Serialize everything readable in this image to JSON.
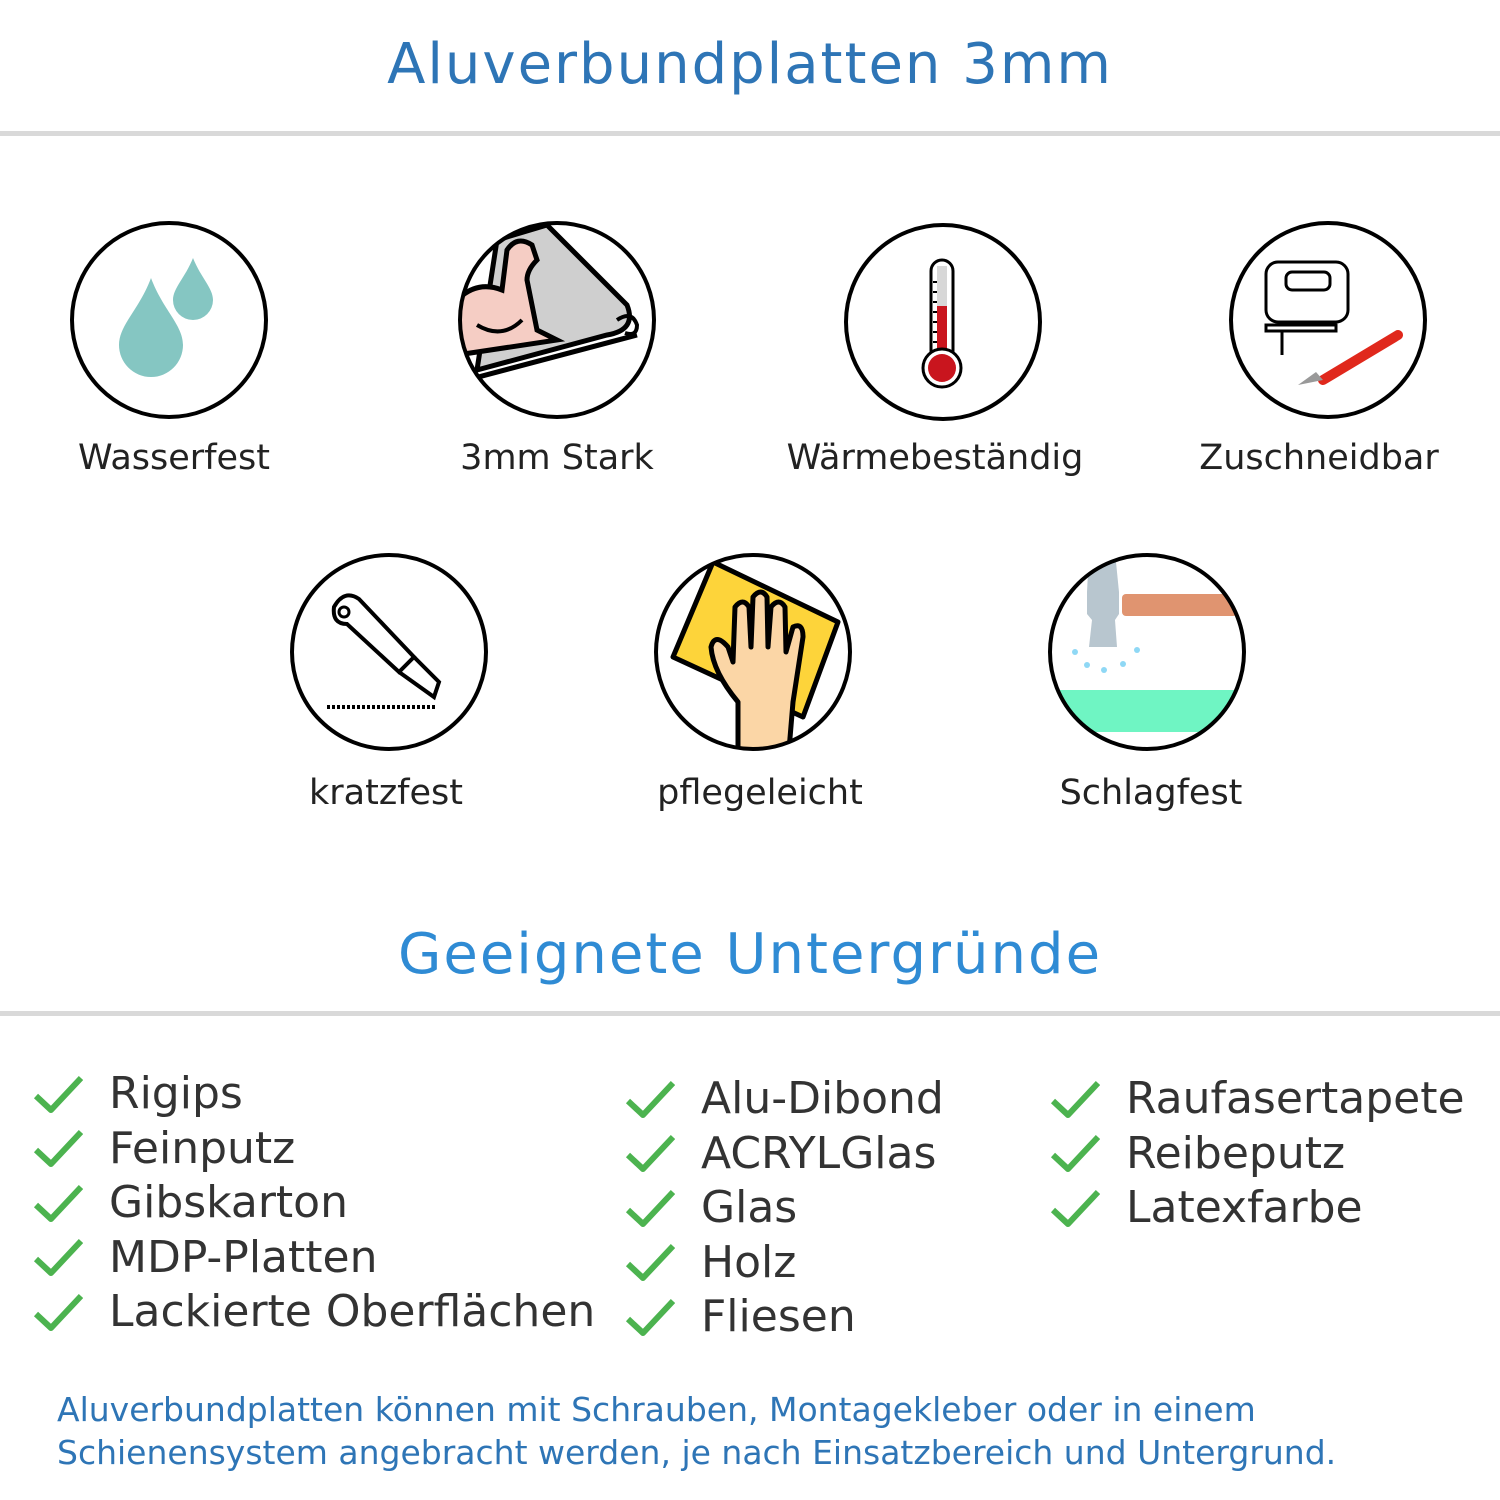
{
  "header": {
    "title": "Aluverbundplatten 3mm"
  },
  "features": [
    {
      "label": "Wasserfest",
      "icon": "water-drops-icon"
    },
    {
      "label": "3mm Stark",
      "icon": "strong-arm-icon"
    },
    {
      "label": "Wärmebeständig",
      "icon": "thermometer-icon"
    },
    {
      "label": "Zuschneidbar",
      "icon": "jigsaw-cutter-icon"
    },
    {
      "label": "kratzfest",
      "icon": "box-cutter-icon"
    },
    {
      "label": "pflegeleicht",
      "icon": "wiping-hand-icon"
    },
    {
      "label": "Schlagfest",
      "icon": "hammer-icon"
    }
  ],
  "surfaces": {
    "title": "Geeignete Untergründe",
    "columns": [
      [
        "Rigips",
        "Feinputz",
        "Gibskarton",
        "MDP-Platten",
        "Lackierte Oberflächen"
      ],
      [
        "Alu-Dibond",
        "ACRYLGlas",
        "Glas",
        "Holz",
        "Fliesen"
      ],
      [
        "Raufasertapete",
        "Reibeputz",
        "Latexfarbe"
      ]
    ]
  },
  "footer": {
    "line1": "Aluverbundplatten können mit Schrauben, Montagekleber oder in einem",
    "line2": "Schienensystem angebracht werden, je nach Einsatzbereich und Untergrund."
  },
  "colors": {
    "title": "#2e75b6",
    "subtitle": "#2f8bd4",
    "check": "#4cb34f",
    "rule": "#d9d9d9"
  }
}
